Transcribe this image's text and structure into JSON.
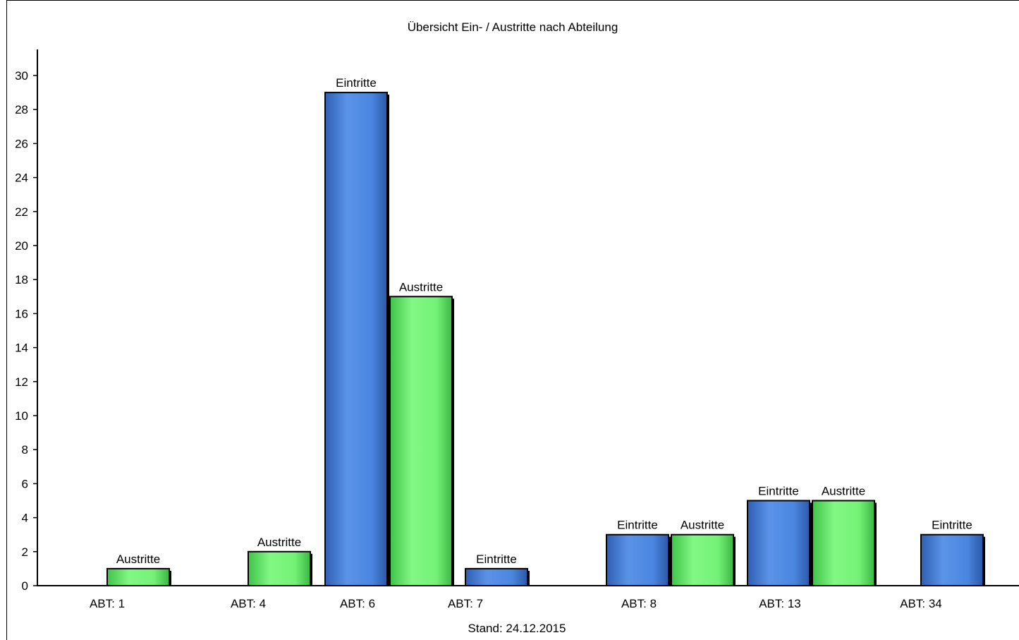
{
  "chart_data": {
    "type": "bar",
    "title": "Übersicht Ein- / Austritte nach Abteilung",
    "xlabel": "Stand: 24.12.2015",
    "ylabel": "",
    "ylim": [
      0,
      31
    ],
    "yticks": [
      0,
      2,
      4,
      6,
      8,
      10,
      12,
      14,
      16,
      18,
      20,
      22,
      24,
      26,
      28,
      30
    ],
    "grid": false,
    "legend": "none",
    "categories": [
      "ABT: 1",
      "ABT: 4",
      "ABT: 6",
      "ABT: 7",
      "ABT: 8",
      "ABT: 13",
      "ABT: 34"
    ],
    "series": [
      {
        "name": "Eintritte",
        "color": "#4a86e0",
        "values": [
          0,
          0,
          29,
          1,
          3,
          5,
          3
        ]
      },
      {
        "name": "Austritte",
        "color": "#74f276",
        "values": [
          1,
          2,
          17,
          0,
          3,
          5,
          0
        ]
      }
    ]
  }
}
